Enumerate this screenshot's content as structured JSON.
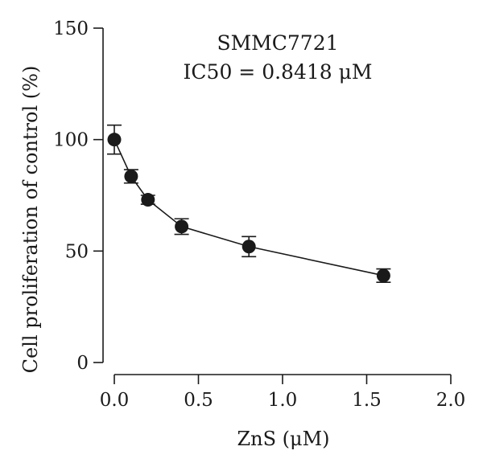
{
  "chart_data": {
    "type": "line",
    "xlabel": "ZnS (μM)",
    "ylabel": "Cell proliferation of control (%)",
    "xlim": [
      0.0,
      2.0
    ],
    "ylim": [
      0,
      150
    ],
    "x_ticks": [
      "0.0",
      "0.5",
      "1.0",
      "1.5",
      "2.0"
    ],
    "y_ticks": [
      "0",
      "50",
      "100",
      "150"
    ],
    "annotations": [
      "SMMC7721",
      "IC50 = 0.8418 μM"
    ],
    "grid": false,
    "series": [
      {
        "x": [
          0.0,
          0.1,
          0.2,
          0.4,
          0.8,
          1.6
        ],
        "y": [
          100,
          83.5,
          73,
          61,
          52,
          39
        ],
        "err": [
          6.5,
          3,
          2,
          3.5,
          4.5,
          3
        ],
        "marker": "filled-circle",
        "color": "#1a1a1a"
      }
    ]
  }
}
